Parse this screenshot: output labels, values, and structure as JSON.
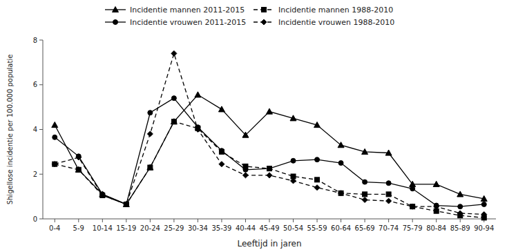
{
  "chart_data": {
    "type": "line",
    "xlabel": "Leeftijd in jaren",
    "ylabel": "Shigellose incidentie per 100.000 populatie",
    "categories": [
      "0-4",
      "5-9",
      "10-14",
      "15-19",
      "20-24",
      "25-29",
      "30-34",
      "35-39",
      "40-44",
      "45-49",
      "50-54",
      "55-59",
      "60-64",
      "65-69",
      "70-74",
      "75-79",
      "80-84",
      "85-89",
      "90-94"
    ],
    "series": [
      {
        "name": "Incidentie mannen 2011-2015",
        "color": "black",
        "marker": "triangle",
        "line_style": "solid",
        "values": [
          4.2,
          2.2,
          1.1,
          0.65,
          2.3,
          4.35,
          5.55,
          4.9,
          3.75,
          4.8,
          4.5,
          4.2,
          3.3,
          3.0,
          2.95,
          1.55,
          1.55,
          1.1,
          0.9
        ]
      },
      {
        "name": "Incidentie vrouwen 2011-2015",
        "color": "black",
        "marker": "circle",
        "line_style": "solid",
        "values": [
          3.65,
          2.8,
          1.1,
          0.65,
          4.75,
          5.4,
          4.1,
          3.05,
          2.2,
          2.25,
          2.6,
          2.65,
          2.5,
          1.65,
          1.6,
          1.35,
          0.6,
          0.55,
          0.65
        ]
      },
      {
        "name": "Incidentie mannen 1988-2010",
        "color": "black",
        "marker": "square",
        "line_style": "dashed",
        "values": [
          2.45,
          2.2,
          1.05,
          0.65,
          2.3,
          4.35,
          4.05,
          3.0,
          2.35,
          2.25,
          1.9,
          1.75,
          1.15,
          1.1,
          1.1,
          0.55,
          0.35,
          0.15,
          0.05
        ]
      },
      {
        "name": "Incidentie vrouwen 1988-2010",
        "color": "black",
        "marker": "diamond",
        "line_style": "dashed",
        "values": [
          2.45,
          2.75,
          1.05,
          0.65,
          3.8,
          7.4,
          4.0,
          2.45,
          1.95,
          1.95,
          1.7,
          1.4,
          1.15,
          0.85,
          0.8,
          0.55,
          0.55,
          0.25,
          0.2
        ]
      }
    ],
    "ylim": [
      0,
      8
    ],
    "yticks": [
      0,
      2,
      4,
      6,
      8
    ],
    "grid": false,
    "legend": "top"
  }
}
